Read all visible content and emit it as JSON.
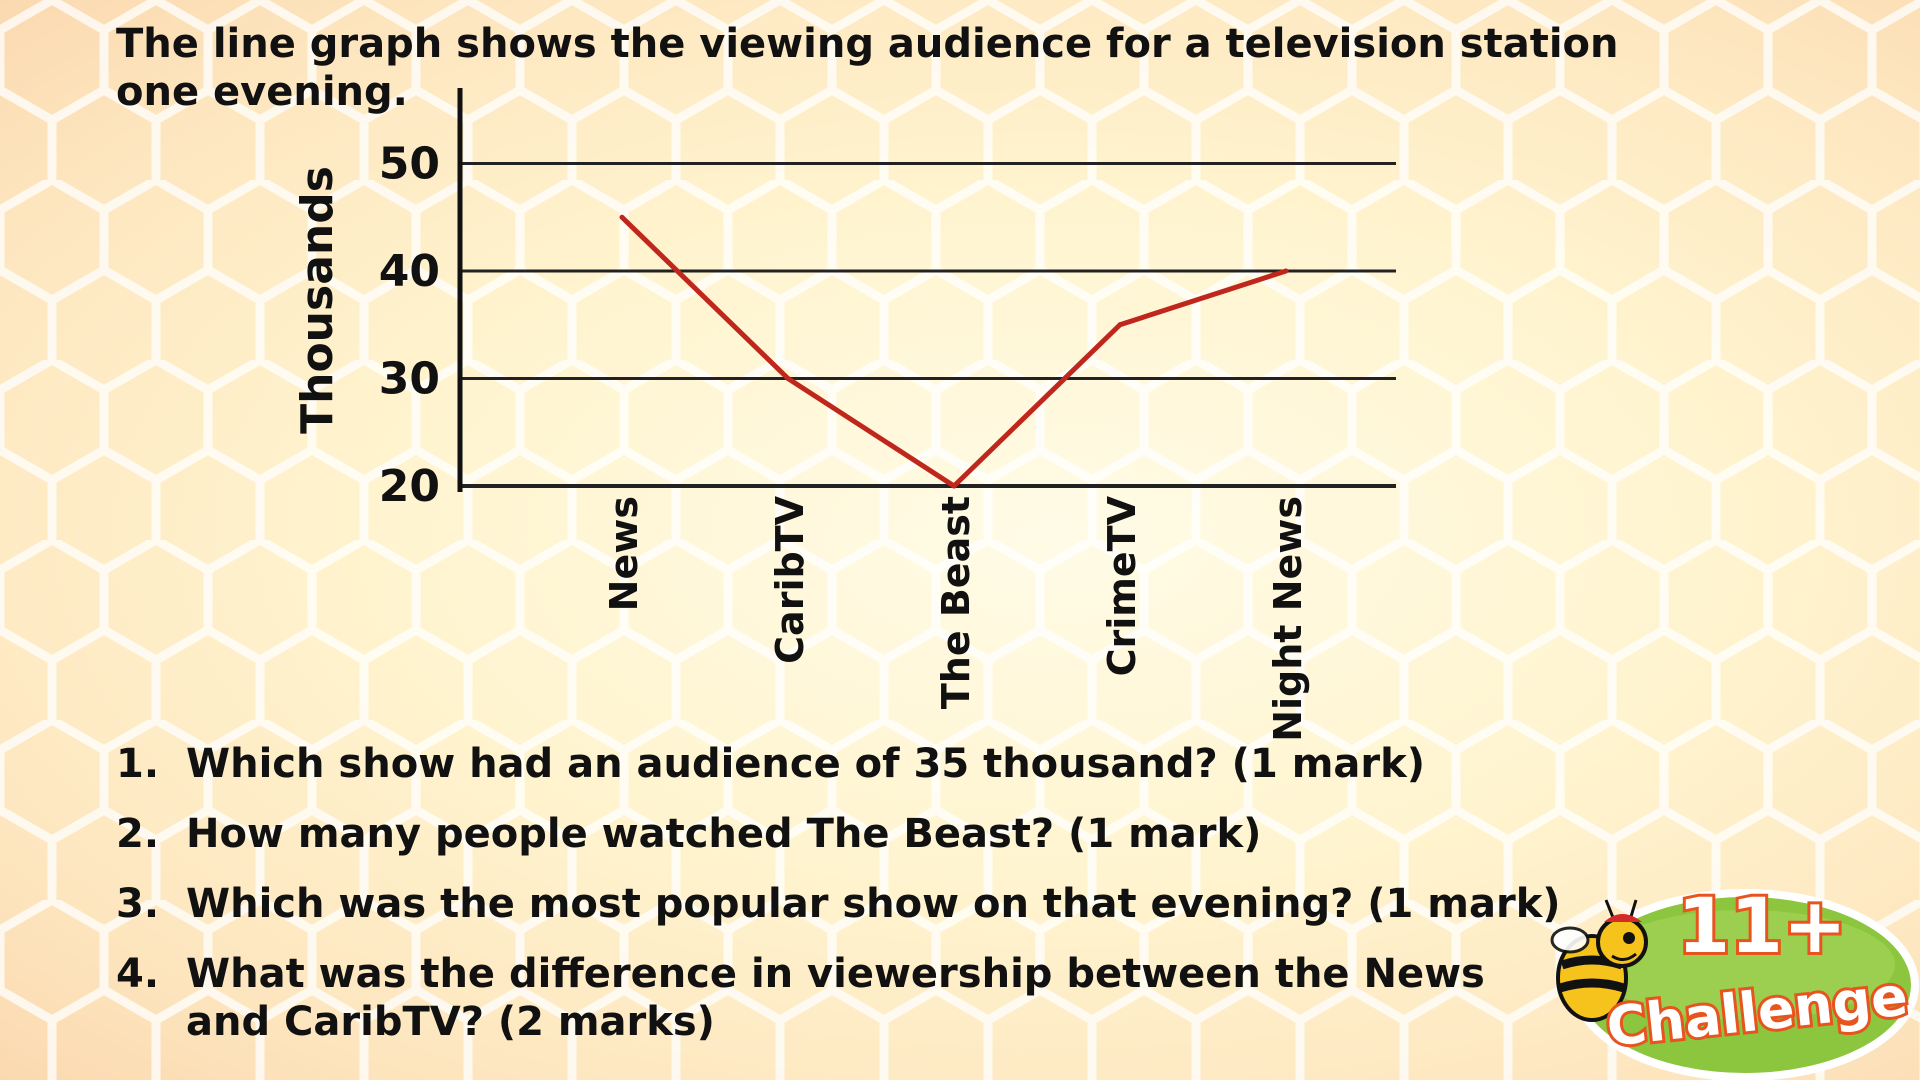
{
  "intro": "The line graph shows the viewing audience for a television station one evening.",
  "chart_data": {
    "type": "line",
    "ylabel": "Thousands",
    "xlabel": "",
    "categories": [
      "News",
      "CaribTV",
      "The Beast",
      "CrimeTV",
      "Night News"
    ],
    "series": [
      {
        "values": [
          45,
          30,
          20,
          35,
          40
        ],
        "color": "#c0271c"
      }
    ],
    "yticks": [
      20,
      30,
      40,
      50
    ],
    "ylim": [
      20,
      55
    ],
    "grid": true,
    "gridline_color": "#222222"
  },
  "questions": [
    {
      "number": "1.",
      "text": "Which show had an audience of 35 thousand?  (1 mark)"
    },
    {
      "number": "2.",
      "text": "How many people watched The Beast? (1 mark)"
    },
    {
      "number": "3.",
      "text": "Which was the most popular show on that evening? (1 mark)"
    },
    {
      "number": "4.",
      "text": "What was the difference in viewership between the News and CaribTV?  (2 marks)"
    }
  ],
  "logo": {
    "line1": "11+",
    "line2": "Challenge",
    "mascot": "bee-icon",
    "colors": {
      "badge": "#8cc63f",
      "text_fill": "#ffffff",
      "text_outline": "#e8541e"
    }
  }
}
